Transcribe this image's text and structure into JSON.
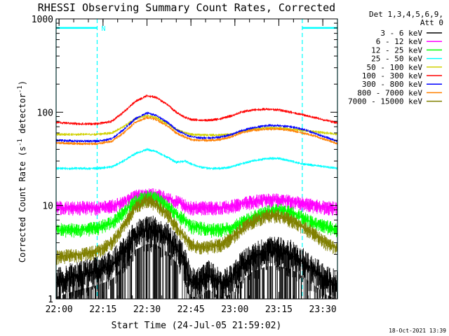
{
  "chart_data": {
    "type": "line",
    "title": "RHESSI Observing Summary Count Rates, Corrected",
    "xlabel": "Start Time (24-Jul-05 21:59:02)",
    "ylabel": "Corrected Count Rate (s⁻¹ detector⁻¹)",
    "ylabel_parts": {
      "main": "Corrected Count Rate (s",
      "exp1": "-1",
      "mid": " detector",
      "exp2": "-1",
      "end": ")"
    },
    "yscale": "log",
    "ylim": [
      1,
      1000
    ],
    "xlim_min": [
      0,
      96
    ],
    "x_ticks": [
      {
        "label": "22:00",
        "min": 1
      },
      {
        "label": "22:15",
        "min": 16
      },
      {
        "label": "22:30",
        "min": 31
      },
      {
        "label": "22:45",
        "min": 46
      },
      {
        "label": "23:00",
        "min": 61
      },
      {
        "label": "23:15",
        "min": 76
      },
      {
        "label": "23:30",
        "min": 91
      }
    ],
    "y_ticks": [
      {
        "label": "1",
        "value": 1
      },
      {
        "label": "10",
        "value": 10
      },
      {
        "label": "100",
        "value": 100
      },
      {
        "label": "1000",
        "value": 1000
      }
    ],
    "legend": {
      "header": [
        "Det 1,3,4,5,6,9,",
        "Att 0"
      ],
      "placement": "right"
    },
    "night_markers": {
      "label": "N",
      "intervals": [
        [
          0,
          14
        ],
        [
          84,
          96
        ]
      ],
      "level": 800
    },
    "series": [
      {
        "name": "3 - 6 keV",
        "color": "#000000",
        "band": "bottom",
        "t": [
          0,
          8,
          14,
          19,
          23,
          27,
          31,
          34,
          38,
          41,
          44,
          46,
          49,
          52,
          56,
          60,
          63,
          67,
          72,
          76,
          80,
          84,
          88,
          92,
          96
        ],
        "v": [
          1.5,
          1.8,
          2.0,
          2.3,
          3.2,
          4.8,
          5.5,
          5.5,
          4.5,
          3.5,
          2.5,
          1.5,
          1.5,
          1.8,
          1.5,
          1.6,
          2.2,
          2.8,
          3.2,
          3.2,
          3.0,
          2.5,
          2.0,
          1.6,
          1.4
        ]
      },
      {
        "name": "6 - 12 keV",
        "color": "#ff00ff",
        "t": [
          0,
          8,
          14,
          19,
          23,
          27,
          31,
          34,
          38,
          41,
          44,
          46,
          49,
          52,
          56,
          60,
          63,
          67,
          72,
          76,
          80,
          84,
          88,
          92,
          96
        ],
        "v": [
          9.5,
          9.5,
          9.5,
          9.8,
          11,
          12.5,
          13,
          13,
          12,
          11,
          10,
          9.5,
          9.5,
          9.5,
          9.5,
          9.8,
          10.5,
          11,
          11.5,
          11.5,
          11,
          10.5,
          10,
          9.6,
          9.3
        ]
      },
      {
        "name": "12 - 25 keV",
        "color": "#00ff00",
        "t": [
          0,
          8,
          14,
          19,
          23,
          27,
          31,
          34,
          38,
          41,
          44,
          46,
          49,
          52,
          56,
          60,
          63,
          67,
          72,
          76,
          80,
          84,
          88,
          92,
          96
        ],
        "v": [
          5.5,
          5.5,
          5.8,
          6.5,
          8.5,
          11,
          12.5,
          12,
          10,
          8,
          7,
          6,
          5.8,
          5.5,
          5.5,
          5.8,
          6.5,
          7.5,
          8.5,
          9,
          8.5,
          7.5,
          6.5,
          6,
          5.5
        ]
      },
      {
        "name": "25 - 50 keV",
        "color": "#00ffff",
        "t": [
          0,
          8,
          14,
          19,
          23,
          27,
          31,
          34,
          38,
          41,
          44,
          46,
          49,
          52,
          56,
          60,
          63,
          67,
          72,
          76,
          80,
          84,
          88,
          92,
          96
        ],
        "v": [
          25,
          25,
          25,
          26,
          30,
          36,
          40,
          38,
          33,
          29,
          30,
          28,
          26,
          25,
          25,
          26,
          28,
          30,
          32,
          32,
          30,
          28,
          27,
          26,
          25
        ]
      },
      {
        "name": "50 - 100 keV",
        "color": "#d0d000",
        "t": [
          0,
          8,
          14,
          19,
          23,
          27,
          31,
          34,
          38,
          41,
          44,
          46,
          49,
          52,
          56,
          60,
          63,
          67,
          72,
          76,
          80,
          84,
          88,
          92,
          96
        ],
        "v": [
          58,
          58,
          58,
          60,
          70,
          85,
          92,
          88,
          75,
          65,
          60,
          58,
          57,
          57,
          57,
          58,
          62,
          66,
          68,
          68,
          66,
          64,
          62,
          60,
          58
        ]
      },
      {
        "name": "100 - 300 keV",
        "color": "#ff0000",
        "t": [
          0,
          8,
          14,
          19,
          23,
          27,
          31,
          34,
          38,
          41,
          44,
          46,
          49,
          52,
          56,
          60,
          63,
          67,
          72,
          76,
          80,
          84,
          88,
          92,
          96
        ],
        "v": [
          78,
          75,
          75,
          80,
          100,
          130,
          150,
          145,
          120,
          100,
          88,
          84,
          82,
          82,
          85,
          92,
          100,
          106,
          108,
          106,
          100,
          94,
          88,
          82,
          77
        ]
      },
      {
        "name": "300 - 800 keV",
        "color": "#0000ff",
        "t": [
          0,
          8,
          14,
          19,
          23,
          27,
          31,
          34,
          38,
          41,
          44,
          46,
          49,
          52,
          56,
          60,
          63,
          67,
          72,
          76,
          80,
          84,
          88,
          92,
          96
        ],
        "v": [
          50,
          49,
          49,
          52,
          65,
          85,
          98,
          93,
          78,
          65,
          58,
          55,
          53,
          53,
          54,
          58,
          63,
          68,
          72,
          72,
          70,
          66,
          60,
          54,
          49
        ]
      },
      {
        "name": "800 - 7000 keV",
        "color": "#ff8000",
        "t": [
          0,
          8,
          14,
          19,
          23,
          27,
          31,
          34,
          38,
          41,
          44,
          46,
          49,
          52,
          56,
          60,
          63,
          67,
          72,
          76,
          80,
          84,
          88,
          92,
          96
        ],
        "v": [
          47,
          46,
          46,
          49,
          60,
          78,
          88,
          84,
          71,
          60,
          54,
          51,
          50,
          50,
          51,
          55,
          60,
          64,
          66,
          66,
          64,
          60,
          56,
          51,
          46
        ]
      },
      {
        "name": "7000 - 15000 keV",
        "color": "#808000",
        "t": [
          0,
          8,
          14,
          19,
          23,
          27,
          31,
          34,
          38,
          41,
          44,
          46,
          49,
          52,
          56,
          60,
          63,
          67,
          72,
          76,
          80,
          84,
          88,
          92,
          96
        ],
        "v": [
          2.8,
          3.0,
          3.2,
          4.0,
          6.0,
          9.5,
          11.5,
          10.5,
          8.0,
          6.0,
          4.5,
          3.8,
          3.6,
          3.6,
          3.8,
          4.5,
          5.5,
          6.8,
          7.8,
          7.8,
          7.0,
          6.0,
          5.0,
          4.0,
          3.5
        ]
      }
    ]
  },
  "footer": {
    "date_stamp": "18-Oct-2021 13:39"
  }
}
